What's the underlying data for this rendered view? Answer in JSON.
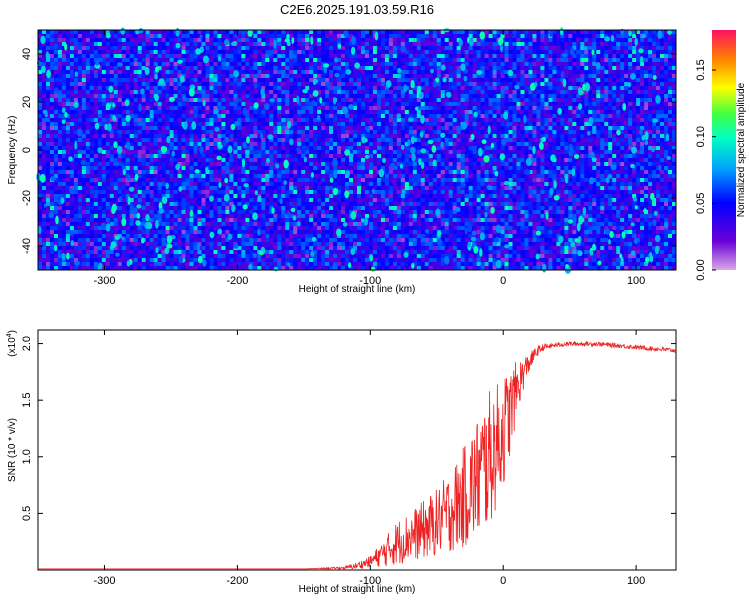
{
  "title": "C2E6.2025.191.03.59.R16",
  "chart_data": [
    {
      "type": "heatmap",
      "title": "C2E6.2025.191.03.59.R16",
      "xlabel": "Height of straight line (km)",
      "ylabel": "Frequency (Hz)",
      "xlim": [
        -350,
        130
      ],
      "ylim": [
        -50,
        50
      ],
      "x_ticks": [
        "-300",
        "-200",
        "-100",
        "0",
        "100"
      ],
      "x_tick_values": [
        -300,
        -200,
        -100,
        0,
        100
      ],
      "y_ticks": [
        "-40",
        "-20",
        "0",
        "20",
        "40"
      ],
      "y_tick_values": [
        -40,
        -20,
        0,
        20,
        40
      ],
      "colorbar": {
        "label": "Normalized spectral amplitude",
        "range": [
          0,
          0.18
        ],
        "ticks": [
          "0.00",
          "0.05",
          "0.10",
          "0.15"
        ],
        "tick_values": [
          0,
          0.05,
          0.1,
          0.15
        ],
        "colormap": [
          "#d9a8e8",
          "#6a00d6",
          "#0000ff",
          "#00a0ff",
          "#00ffc0",
          "#40ff40",
          "#ffff00",
          "#ff8000",
          "#ff1060"
        ]
      },
      "description_values": "noise-like field, mostly 0.02-0.06 with scattered peaks up to ~0.09"
    },
    {
      "type": "line",
      "xlabel": "Height of straight line (km)",
      "ylabel": "SNR (10 * v/v)",
      "y_multiplier": "(x10",
      "y_multiplier_exp": "4",
      "y_multiplier_close": ")",
      "xlim": [
        -350,
        130
      ],
      "ylim": [
        0,
        2.12
      ],
      "x_ticks": [
        "-300",
        "-200",
        "-100",
        "0",
        "100"
      ],
      "x_tick_values": [
        -300,
        -200,
        -100,
        0,
        100
      ],
      "y_ticks": [
        "0.5",
        "1.0",
        "1.5",
        "2.0"
      ],
      "y_tick_values": [
        0.5,
        1.0,
        1.5,
        2.0
      ],
      "line_color": "#ee2222",
      "x": [
        -350,
        -300,
        -250,
        -200,
        -150,
        -120,
        -110,
        -100,
        -90,
        -80,
        -70,
        -60,
        -50,
        -40,
        -30,
        -25,
        -20,
        -15,
        -10,
        -5,
        0,
        5,
        10,
        15,
        20,
        25,
        30,
        40,
        50,
        60,
        70,
        80,
        90,
        100,
        110,
        120,
        130
      ],
      "y": [
        0.01,
        0.01,
        0.01,
        0.01,
        0.01,
        0.02,
        0.04,
        0.08,
        0.16,
        0.26,
        0.32,
        0.38,
        0.45,
        0.55,
        0.68,
        0.78,
        0.85,
        0.95,
        1.05,
        1.15,
        1.28,
        1.42,
        1.62,
        1.75,
        1.85,
        1.93,
        1.97,
        1.99,
        2.0,
        2.0,
        2.0,
        1.99,
        1.98,
        1.97,
        1.96,
        1.95,
        1.94
      ],
      "noise_amplitude": [
        0,
        0,
        0,
        0,
        0,
        0.01,
        0.03,
        0.05,
        0.12,
        0.2,
        0.22,
        0.26,
        0.3,
        0.36,
        0.45,
        0.5,
        0.55,
        0.6,
        0.6,
        0.55,
        0.5,
        0.4,
        0.25,
        0.15,
        0.08,
        0.05,
        0.03,
        0.02,
        0.02,
        0.02,
        0.02,
        0.02,
        0.02,
        0.02,
        0.02,
        0.02,
        0.02
      ]
    }
  ]
}
